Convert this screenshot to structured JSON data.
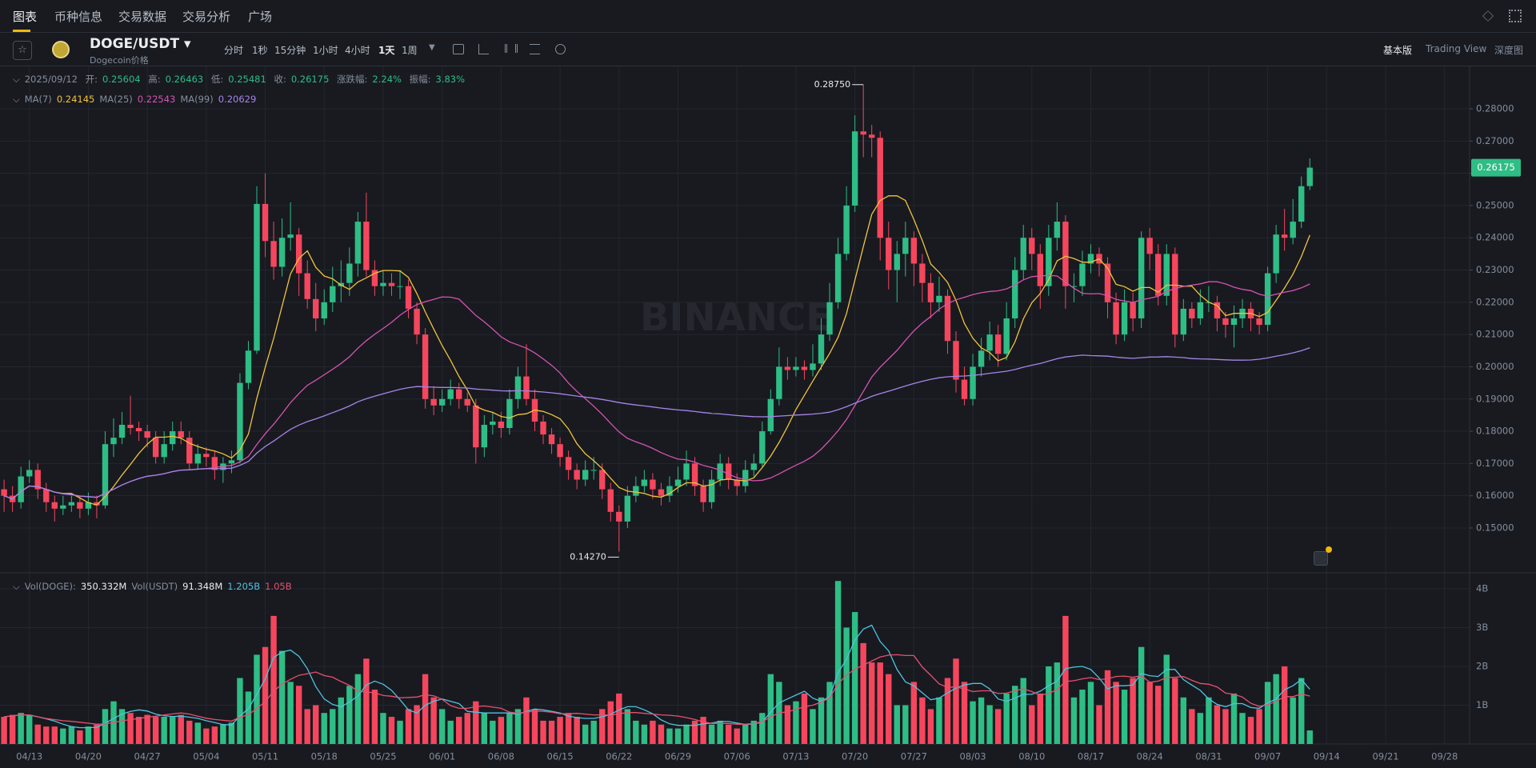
{
  "ui": {
    "tabs": [
      "图表",
      "币种信息",
      "交易数据",
      "交易分析",
      "广场"
    ],
    "symbol": "DOGE/USDT",
    "symbol_sub": "Dogecoin价格",
    "intervals": [
      "分时",
      "1秒",
      "15分钟",
      "1小时",
      "4小时",
      "1天",
      "1周"
    ],
    "views": [
      "基本版",
      "Trading View",
      "深度图"
    ]
  },
  "chart_data": {
    "type": "candlestick",
    "date": "2025/09/12",
    "x": [
      "04/10",
      "04/11",
      "04/12",
      "04/13",
      "04/14",
      "04/15",
      "04/16",
      "04/17",
      "04/18",
      "04/19",
      "04/20",
      "04/21",
      "04/22",
      "04/23",
      "04/24",
      "04/25",
      "04/26",
      "04/27",
      "04/28",
      "04/29",
      "04/30",
      "05/01",
      "05/02",
      "05/03",
      "05/04",
      "05/05",
      "05/06",
      "05/07",
      "05/08",
      "05/09",
      "05/10",
      "05/11",
      "05/12",
      "05/13",
      "05/14",
      "05/15",
      "05/16",
      "05/17",
      "05/18",
      "05/19",
      "05/20",
      "05/21",
      "05/22",
      "05/23",
      "05/24",
      "05/25",
      "05/26",
      "05/27",
      "05/28",
      "05/29",
      "05/30",
      "05/31",
      "06/01",
      "06/02",
      "06/03",
      "06/04",
      "06/05",
      "06/06",
      "06/07",
      "06/08",
      "06/09",
      "06/10",
      "06/11",
      "06/12",
      "06/13",
      "06/14",
      "06/15",
      "06/16",
      "06/17",
      "06/18",
      "06/19",
      "06/20",
      "06/21",
      "06/22",
      "06/23",
      "06/24",
      "06/25",
      "06/26",
      "06/27",
      "06/28",
      "06/29",
      "06/30",
      "07/01",
      "07/02",
      "07/03",
      "07/04",
      "07/05",
      "07/06",
      "07/07",
      "07/08",
      "07/09",
      "07/10",
      "07/11",
      "07/12",
      "07/13",
      "07/14",
      "07/15",
      "07/16",
      "07/17",
      "07/18",
      "07/19",
      "07/20",
      "07/21",
      "07/22",
      "07/23",
      "07/24",
      "07/25",
      "07/26",
      "07/27",
      "07/28",
      "07/29",
      "07/30",
      "07/31",
      "08/01",
      "08/02",
      "08/03",
      "08/04",
      "08/05",
      "08/06",
      "08/07",
      "08/08",
      "08/09",
      "08/10",
      "08/11",
      "08/12",
      "08/13",
      "08/14",
      "08/15",
      "08/16",
      "08/17",
      "08/18",
      "08/19",
      "08/20",
      "08/21",
      "08/22",
      "08/23",
      "08/24",
      "08/25",
      "08/26",
      "08/27",
      "08/28",
      "08/29",
      "08/30",
      "08/31",
      "09/01",
      "09/02",
      "09/03",
      "09/04",
      "09/05",
      "09/06",
      "09/07",
      "09/08",
      "09/09",
      "09/10",
      "09/11",
      "09/12"
    ],
    "candles": [
      [
        0.162,
        0.165,
        0.155,
        0.16
      ],
      [
        0.16,
        0.163,
        0.155,
        0.158
      ],
      [
        0.158,
        0.169,
        0.156,
        0.166
      ],
      [
        0.166,
        0.171,
        0.164,
        0.168
      ],
      [
        0.168,
        0.17,
        0.159,
        0.162
      ],
      [
        0.162,
        0.164,
        0.155,
        0.158
      ],
      [
        0.158,
        0.16,
        0.152,
        0.156
      ],
      [
        0.156,
        0.16,
        0.154,
        0.157
      ],
      [
        0.157,
        0.16,
        0.155,
        0.158
      ],
      [
        0.158,
        0.16,
        0.153,
        0.156
      ],
      [
        0.156,
        0.161,
        0.154,
        0.158
      ],
      [
        0.158,
        0.16,
        0.153,
        0.157
      ],
      [
        0.157,
        0.18,
        0.156,
        0.176
      ],
      [
        0.176,
        0.184,
        0.172,
        0.178
      ],
      [
        0.178,
        0.186,
        0.176,
        0.182
      ],
      [
        0.182,
        0.191,
        0.179,
        0.181
      ],
      [
        0.181,
        0.183,
        0.177,
        0.18
      ],
      [
        0.18,
        0.182,
        0.175,
        0.178
      ],
      [
        0.178,
        0.18,
        0.17,
        0.172
      ],
      [
        0.172,
        0.18,
        0.17,
        0.176
      ],
      [
        0.176,
        0.183,
        0.174,
        0.18
      ],
      [
        0.18,
        0.183,
        0.176,
        0.178
      ],
      [
        0.178,
        0.18,
        0.168,
        0.17
      ],
      [
        0.17,
        0.176,
        0.168,
        0.173
      ],
      [
        0.173,
        0.175,
        0.169,
        0.172
      ],
      [
        0.172,
        0.174,
        0.165,
        0.168
      ],
      [
        0.168,
        0.172,
        0.164,
        0.17
      ],
      [
        0.17,
        0.174,
        0.167,
        0.171
      ],
      [
        0.171,
        0.198,
        0.17,
        0.195
      ],
      [
        0.195,
        0.208,
        0.193,
        0.205
      ],
      [
        0.205,
        0.256,
        0.204,
        0.2505
      ],
      [
        0.2505,
        0.26,
        0.234,
        0.239
      ],
      [
        0.239,
        0.245,
        0.227,
        0.231
      ],
      [
        0.231,
        0.246,
        0.228,
        0.24
      ],
      [
        0.24,
        0.251,
        0.236,
        0.241
      ],
      [
        0.241,
        0.243,
        0.222,
        0.229
      ],
      [
        0.229,
        0.233,
        0.218,
        0.221
      ],
      [
        0.221,
        0.226,
        0.211,
        0.215
      ],
      [
        0.215,
        0.224,
        0.213,
        0.22
      ],
      [
        0.22,
        0.231,
        0.217,
        0.225
      ],
      [
        0.225,
        0.233,
        0.22,
        0.226
      ],
      [
        0.226,
        0.237,
        0.222,
        0.232
      ],
      [
        0.232,
        0.248,
        0.228,
        0.245
      ],
      [
        0.245,
        0.254,
        0.228,
        0.23
      ],
      [
        0.23,
        0.233,
        0.222,
        0.225
      ],
      [
        0.225,
        0.23,
        0.222,
        0.226
      ],
      [
        0.226,
        0.229,
        0.222,
        0.225
      ],
      [
        0.225,
        0.23,
        0.221,
        0.225
      ],
      [
        0.225,
        0.227,
        0.215,
        0.218
      ],
      [
        0.218,
        0.22,
        0.207,
        0.21
      ],
      [
        0.21,
        0.212,
        0.187,
        0.19
      ],
      [
        0.19,
        0.194,
        0.185,
        0.188
      ],
      [
        0.188,
        0.193,
        0.186,
        0.19
      ],
      [
        0.19,
        0.196,
        0.188,
        0.193
      ],
      [
        0.193,
        0.195,
        0.187,
        0.19
      ],
      [
        0.19,
        0.192,
        0.186,
        0.188
      ],
      [
        0.188,
        0.19,
        0.17,
        0.175
      ],
      [
        0.175,
        0.185,
        0.172,
        0.182
      ],
      [
        0.182,
        0.186,
        0.179,
        0.183
      ],
      [
        0.183,
        0.186,
        0.178,
        0.181
      ],
      [
        0.181,
        0.193,
        0.179,
        0.19
      ],
      [
        0.19,
        0.2,
        0.187,
        0.197
      ],
      [
        0.197,
        0.207,
        0.188,
        0.19
      ],
      [
        0.19,
        0.193,
        0.18,
        0.183
      ],
      [
        0.183,
        0.185,
        0.176,
        0.179
      ],
      [
        0.179,
        0.181,
        0.173,
        0.176
      ],
      [
        0.176,
        0.178,
        0.169,
        0.172
      ],
      [
        0.172,
        0.174,
        0.165,
        0.168
      ],
      [
        0.168,
        0.17,
        0.162,
        0.165
      ],
      [
        0.165,
        0.171,
        0.163,
        0.168
      ],
      [
        0.168,
        0.172,
        0.165,
        0.168
      ],
      [
        0.168,
        0.17,
        0.159,
        0.162
      ],
      [
        0.162,
        0.164,
        0.152,
        0.155
      ],
      [
        0.155,
        0.157,
        0.1427,
        0.152
      ],
      [
        0.152,
        0.163,
        0.15,
        0.16
      ],
      [
        0.16,
        0.166,
        0.158,
        0.163
      ],
      [
        0.163,
        0.168,
        0.161,
        0.165
      ],
      [
        0.165,
        0.167,
        0.159,
        0.162
      ],
      [
        0.162,
        0.164,
        0.157,
        0.16
      ],
      [
        0.16,
        0.166,
        0.158,
        0.163
      ],
      [
        0.163,
        0.169,
        0.161,
        0.165
      ],
      [
        0.165,
        0.174,
        0.163,
        0.17
      ],
      [
        0.17,
        0.172,
        0.16,
        0.163
      ],
      [
        0.163,
        0.165,
        0.155,
        0.158
      ],
      [
        0.158,
        0.168,
        0.156,
        0.165
      ],
      [
        0.165,
        0.173,
        0.163,
        0.17
      ],
      [
        0.17,
        0.172,
        0.162,
        0.165
      ],
      [
        0.165,
        0.167,
        0.16,
        0.163
      ],
      [
        0.163,
        0.171,
        0.161,
        0.168
      ],
      [
        0.168,
        0.173,
        0.166,
        0.17
      ],
      [
        0.17,
        0.183,
        0.169,
        0.18
      ],
      [
        0.18,
        0.193,
        0.179,
        0.19
      ],
      [
        0.19,
        0.206,
        0.188,
        0.2
      ],
      [
        0.2,
        0.203,
        0.196,
        0.199
      ],
      [
        0.199,
        0.203,
        0.197,
        0.2
      ],
      [
        0.2,
        0.202,
        0.196,
        0.199
      ],
      [
        0.199,
        0.207,
        0.197,
        0.201
      ],
      [
        0.201,
        0.215,
        0.199,
        0.21
      ],
      [
        0.21,
        0.226,
        0.208,
        0.22
      ],
      [
        0.22,
        0.24,
        0.218,
        0.235
      ],
      [
        0.235,
        0.256,
        0.233,
        0.25
      ],
      [
        0.25,
        0.278,
        0.248,
        0.273
      ],
      [
        0.273,
        0.2875,
        0.265,
        0.272
      ],
      [
        0.272,
        0.275,
        0.265,
        0.271
      ],
      [
        0.271,
        0.273,
        0.233,
        0.24
      ],
      [
        0.24,
        0.245,
        0.224,
        0.23
      ],
      [
        0.23,
        0.239,
        0.22,
        0.235
      ],
      [
        0.235,
        0.245,
        0.228,
        0.24
      ],
      [
        0.24,
        0.242,
        0.225,
        0.232
      ],
      [
        0.232,
        0.235,
        0.22,
        0.226
      ],
      [
        0.226,
        0.229,
        0.215,
        0.22
      ],
      [
        0.22,
        0.228,
        0.217,
        0.222
      ],
      [
        0.222,
        0.224,
        0.204,
        0.208
      ],
      [
        0.208,
        0.211,
        0.192,
        0.196
      ],
      [
        0.196,
        0.2,
        0.188,
        0.19
      ],
      [
        0.19,
        0.204,
        0.188,
        0.2
      ],
      [
        0.2,
        0.209,
        0.197,
        0.205
      ],
      [
        0.205,
        0.214,
        0.202,
        0.21
      ],
      [
        0.21,
        0.213,
        0.2,
        0.204
      ],
      [
        0.204,
        0.22,
        0.202,
        0.215
      ],
      [
        0.215,
        0.234,
        0.212,
        0.23
      ],
      [
        0.23,
        0.244,
        0.227,
        0.24
      ],
      [
        0.24,
        0.243,
        0.23,
        0.235
      ],
      [
        0.235,
        0.238,
        0.218,
        0.225
      ],
      [
        0.225,
        0.244,
        0.222,
        0.24
      ],
      [
        0.24,
        0.251,
        0.236,
        0.245
      ],
      [
        0.245,
        0.247,
        0.218,
        0.225
      ],
      [
        0.225,
        0.229,
        0.22,
        0.225
      ],
      [
        0.225,
        0.236,
        0.222,
        0.232
      ],
      [
        0.232,
        0.238,
        0.229,
        0.235
      ],
      [
        0.235,
        0.237,
        0.228,
        0.232
      ],
      [
        0.232,
        0.234,
        0.215,
        0.22
      ],
      [
        0.22,
        0.223,
        0.207,
        0.21
      ],
      [
        0.21,
        0.224,
        0.208,
        0.22
      ],
      [
        0.22,
        0.223,
        0.211,
        0.215
      ],
      [
        0.215,
        0.242,
        0.212,
        0.24
      ],
      [
        0.24,
        0.243,
        0.23,
        0.235
      ],
      [
        0.235,
        0.238,
        0.219,
        0.222
      ],
      [
        0.222,
        0.238,
        0.219,
        0.235
      ],
      [
        0.235,
        0.237,
        0.206,
        0.21
      ],
      [
        0.21,
        0.221,
        0.208,
        0.218
      ],
      [
        0.218,
        0.22,
        0.212,
        0.215
      ],
      [
        0.215,
        0.224,
        0.213,
        0.22
      ],
      [
        0.22,
        0.225,
        0.217,
        0.22
      ],
      [
        0.22,
        0.222,
        0.211,
        0.215
      ],
      [
        0.215,
        0.217,
        0.209,
        0.213
      ],
      [
        0.213,
        0.219,
        0.206,
        0.215
      ],
      [
        0.215,
        0.221,
        0.212,
        0.218
      ],
      [
        0.218,
        0.22,
        0.211,
        0.215
      ],
      [
        0.215,
        0.217,
        0.21,
        0.213
      ],
      [
        0.213,
        0.231,
        0.211,
        0.229
      ],
      [
        0.229,
        0.244,
        0.226,
        0.241
      ],
      [
        0.241,
        0.249,
        0.236,
        0.24
      ],
      [
        0.24,
        0.252,
        0.238,
        0.245
      ],
      [
        0.245,
        0.259,
        0.243,
        0.256
      ],
      [
        0.25604,
        0.26463,
        0.25481,
        0.26175
      ]
    ],
    "up_color": "#2ebd85",
    "down_color": "#f6465d",
    "ylim": [
      0.1361,
      0.2934
    ],
    "yticks": [
      {
        "value": 0.15,
        "label": "0.15000"
      },
      {
        "value": 0.16,
        "label": "0.16000"
      },
      {
        "value": 0.17,
        "label": "0.17000"
      },
      {
        "value": 0.18,
        "label": "0.18000"
      },
      {
        "value": 0.19,
        "label": "0.19000"
      },
      {
        "value": 0.2,
        "label": "0.20000"
      },
      {
        "value": 0.21,
        "label": "0.21000"
      },
      {
        "value": 0.22,
        "label": "0.22000"
      },
      {
        "value": 0.23,
        "label": "0.23000"
      },
      {
        "value": 0.24,
        "label": "0.24000"
      },
      {
        "value": 0.25,
        "label": "0.25000"
      },
      {
        "value": 0.26,
        "label": "0.26000"
      },
      {
        "value": 0.27,
        "label": "0.27000"
      },
      {
        "value": 0.28,
        "label": "0.28000"
      }
    ],
    "xticks": [
      "04/13",
      "04/20",
      "04/27",
      "05/04",
      "05/11",
      "05/18",
      "05/25",
      "06/01",
      "06/08",
      "06/15",
      "06/22",
      "06/29",
      "07/06",
      "07/13",
      "07/20",
      "07/27",
      "08/03",
      "08/10",
      "08/17",
      "08/24",
      "08/31",
      "09/07",
      "09/14",
      "09/21",
      "09/28"
    ],
    "grid": true,
    "high_label": "0.28750",
    "low_label": "0.14270",
    "watermark": "BINANCE",
    "ohlc_legend": {
      "labels": [
        "开:",
        "高:",
        "低:",
        "收:"
      ],
      "change_label": "涨跌幅:",
      "change": "2.24%",
      "amplitude_label": "振幅:",
      "amplitude": "3.83%"
    },
    "ma": [
      {
        "name": "MA(7)",
        "value": 0.24145,
        "color": "#f0c33c"
      },
      {
        "name": "MA(25)",
        "value": 0.22543,
        "color": "#d653b1"
      },
      {
        "name": "MA(99)",
        "value": 0.20629,
        "color": "#a884e8"
      }
    ],
    "volume": {
      "values": [
        0.7,
        0.75,
        0.8,
        0.75,
        0.5,
        0.45,
        0.45,
        0.4,
        0.45,
        0.35,
        0.45,
        0.5,
        0.9,
        1.1,
        0.9,
        0.8,
        0.7,
        0.75,
        0.7,
        0.7,
        0.7,
        0.75,
        0.6,
        0.55,
        0.4,
        0.45,
        0.5,
        0.55,
        1.7,
        1.35,
        2.3,
        2.5,
        3.3,
        2.4,
        1.6,
        1.5,
        0.9,
        1.0,
        0.8,
        0.9,
        1.2,
        1.5,
        1.8,
        2.2,
        1.4,
        0.8,
        0.7,
        0.6,
        0.9,
        1.0,
        1.8,
        1.2,
        0.9,
        0.6,
        0.7,
        0.8,
        1.1,
        0.8,
        0.6,
        0.7,
        0.8,
        0.9,
        1.2,
        0.9,
        0.6,
        0.6,
        0.7,
        0.8,
        0.7,
        0.5,
        0.6,
        0.9,
        1.1,
        1.3,
        0.9,
        0.6,
        0.5,
        0.6,
        0.5,
        0.4,
        0.4,
        0.5,
        0.6,
        0.7,
        0.5,
        0.6,
        0.5,
        0.4,
        0.5,
        0.6,
        0.8,
        1.8,
        1.6,
        1.0,
        1.1,
        1.3,
        0.9,
        1.2,
        1.6,
        4.2,
        3.0,
        3.4,
        2.6,
        2.1,
        2.1,
        1.8,
        1.0,
        1.0,
        1.6,
        1.2,
        0.9,
        1.2,
        1.7,
        2.2,
        1.6,
        1.1,
        1.2,
        1.0,
        0.9,
        1.3,
        1.5,
        1.7,
        1.0,
        1.3,
        2.0,
        2.1,
        3.3,
        1.2,
        1.4,
        1.6,
        1.0,
        1.9,
        1.6,
        1.4,
        1.7,
        2.5,
        1.6,
        1.5,
        2.3,
        1.7,
        1.2,
        0.9,
        0.8,
        1.2,
        1.0,
        0.9,
        1.3,
        0.8,
        0.7,
        0.9,
        1.6,
        1.8,
        2.0,
        1.2,
        1.7,
        0.35
      ],
      "ylim": [
        0,
        4.39
      ],
      "yticks": [
        {
          "value": 1,
          "label": "1B"
        },
        {
          "value": 2,
          "label": "2B"
        },
        {
          "value": 3,
          "label": "3B"
        },
        {
          "value": 4,
          "label": "4B"
        }
      ],
      "legend": [
        {
          "name": "Vol(DOGE):",
          "value": "350.332M"
        },
        {
          "name": "Vol(USDT)",
          "value": "91.348M"
        }
      ],
      "ma": [
        {
          "value": "1.205B",
          "color": "#4fc3e0"
        },
        {
          "value": "1.05B",
          "color": "#e8506e"
        }
      ]
    }
  }
}
